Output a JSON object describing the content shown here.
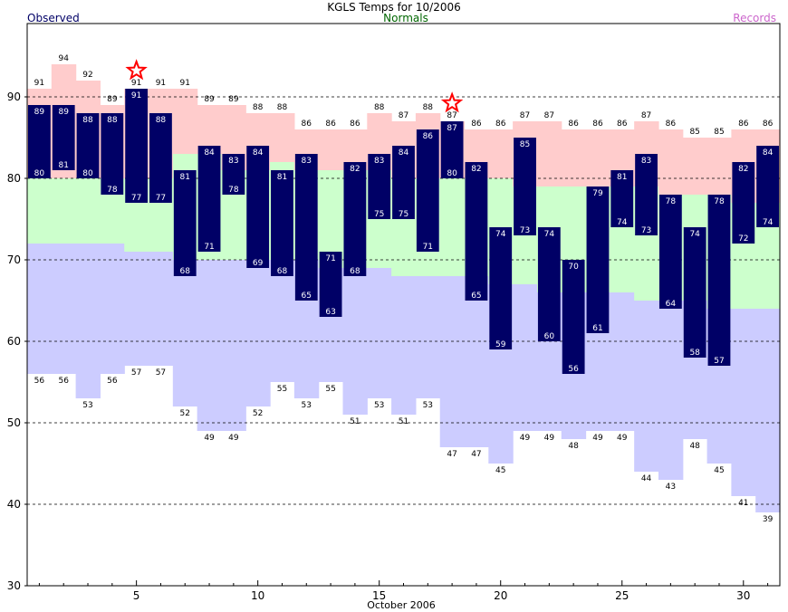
{
  "chart_data": {
    "type": "bar",
    "title": "KGLS Temps for 10/2006",
    "legend": {
      "observed": "Observed",
      "normals": "Normals",
      "records": "Records",
      "observed_color": "#000066",
      "normals_color": "#006600",
      "records_color": "#cc66cc"
    },
    "xlabel": "October 2006",
    "x_ticks": [
      5,
      10,
      15,
      20,
      25,
      30
    ],
    "y_ticks": [
      30,
      40,
      50,
      60,
      70,
      80,
      90
    ],
    "xlim": [
      0.5,
      31.5
    ],
    "ylim": [
      30,
      99
    ],
    "grid": "dashed horizontal at 40-90",
    "days": [
      1,
      2,
      3,
      4,
      5,
      6,
      7,
      8,
      9,
      10,
      11,
      12,
      13,
      14,
      15,
      16,
      17,
      18,
      19,
      20,
      21,
      22,
      23,
      24,
      25,
      26,
      27,
      28,
      29,
      30,
      31
    ],
    "observed_high": [
      89,
      89,
      88,
      88,
      91,
      88,
      81,
      84,
      83,
      84,
      81,
      83,
      71,
      82,
      83,
      84,
      86,
      87,
      82,
      74,
      85,
      74,
      70,
      79,
      81,
      83,
      78,
      74,
      78,
      82,
      84
    ],
    "observed_low": [
      80,
      81,
      80,
      78,
      77,
      77,
      68,
      71,
      78,
      69,
      68,
      65,
      63,
      68,
      75,
      75,
      71,
      80,
      65,
      59,
      73,
      60,
      56,
      61,
      74,
      73,
      64,
      58,
      57,
      72,
      74
    ],
    "normal_high": [
      80,
      80,
      80,
      80,
      80,
      80,
      83,
      83,
      81,
      81,
      82,
      81,
      81,
      81,
      81,
      80,
      80,
      80,
      80,
      80,
      79,
      79,
      79,
      79,
      79,
      79,
      78,
      78,
      78,
      77,
      77
    ],
    "normal_low": [
      72,
      72,
      72,
      72,
      71,
      71,
      70,
      70,
      70,
      70,
      70,
      70,
      69,
      69,
      69,
      68,
      68,
      68,
      68,
      67,
      67,
      66,
      66,
      66,
      66,
      65,
      65,
      65,
      64,
      64,
      64
    ],
    "record_high": [
      91,
      94,
      92,
      89,
      91,
      91,
      91,
      89,
      89,
      88,
      88,
      86,
      86,
      86,
      88,
      87,
      88,
      87,
      86,
      86,
      87,
      87,
      86,
      86,
      86,
      87,
      86,
      85,
      85,
      86,
      86
    ],
    "record_low": [
      56,
      56,
      53,
      56,
      57,
      57,
      52,
      49,
      49,
      52,
      55,
      53,
      55,
      51,
      53,
      51,
      53,
      47,
      47,
      45,
      49,
      49,
      48,
      49,
      49,
      44,
      43,
      48,
      45,
      41,
      39
    ],
    "record_high_star_days": [
      5,
      18
    ],
    "colors": {
      "observed_bar": "#000066",
      "observed_text": "#ffffff",
      "record_high_fill": "#ffcccc",
      "normal_fill": "#ccffcc",
      "record_low_fill": "#ccccff",
      "star": "#ff0000"
    }
  }
}
